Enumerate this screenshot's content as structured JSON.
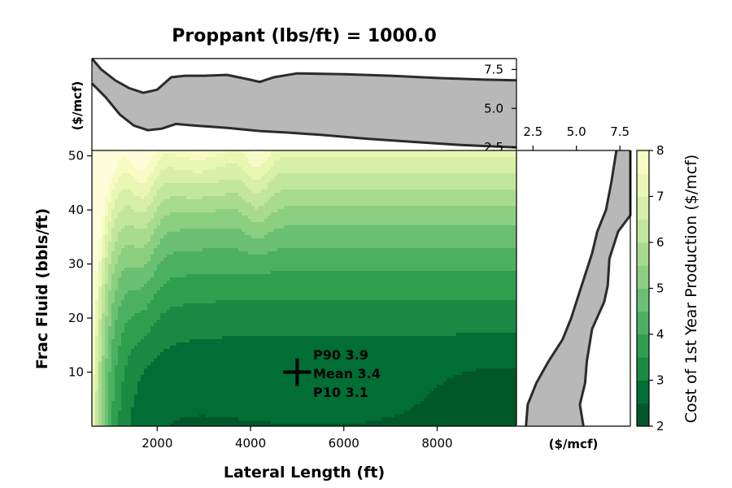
{
  "chart_data": {
    "type": "heatmap",
    "title": "Proppant (lbs/ft) = 1000.0",
    "xlabel": "Lateral Length (ft)",
    "ylabel": "Frac Fluid (bbls/ft)",
    "xlim": [
      600,
      9700
    ],
    "ylim": [
      0,
      51
    ],
    "x_ticks": [
      2000,
      4000,
      6000,
      8000
    ],
    "y_ticks": [
      10,
      20,
      30,
      40,
      50
    ],
    "colorbar": {
      "label": "Cost of 1st Year Production ($/mcf)",
      "levels": [
        2,
        2.5,
        3,
        3.5,
        4,
        4.5,
        5,
        5.5,
        6,
        6.5,
        7,
        7.5,
        8
      ],
      "ticks": [
        2,
        3,
        4,
        5,
        6,
        7,
        8
      ],
      "colors": [
        "#00572a",
        "#006e35",
        "#1a8a42",
        "#2f9e4f",
        "#4bb062",
        "#6bc074",
        "#8ccf80",
        "#a9db8f",
        "#c2e69c",
        "#d7efa6",
        "#e9f7b2",
        "#f7fcc4",
        "#fdfed9"
      ]
    },
    "marker": {
      "x": 5000,
      "y": 10
    },
    "annotation": [
      "P90 3.9",
      "Mean 3.4",
      "P10 3.1"
    ],
    "top_marginal": {
      "ylabel": "($/mcf)",
      "ylim": [
        2.3,
        8.2
      ],
      "y_ticks": [
        "2.5",
        "5.0",
        "7.5"
      ],
      "upper": [
        [
          600,
          8.3
        ],
        [
          800,
          7.5
        ],
        [
          1100,
          6.8
        ],
        [
          1400,
          6.3
        ],
        [
          1700,
          6.0
        ],
        [
          2000,
          6.2
        ],
        [
          2300,
          7.0
        ],
        [
          2600,
          7.1
        ],
        [
          3000,
          7.1
        ],
        [
          3500,
          7.15
        ],
        [
          3900,
          6.9
        ],
        [
          4200,
          6.7
        ],
        [
          4500,
          7.0
        ],
        [
          5000,
          7.25
        ],
        [
          6000,
          7.2
        ],
        [
          7000,
          7.1
        ],
        [
          8000,
          6.95
        ],
        [
          9000,
          6.85
        ],
        [
          9700,
          6.8
        ]
      ],
      "lower": [
        [
          600,
          6.6
        ],
        [
          900,
          5.7
        ],
        [
          1200,
          4.6
        ],
        [
          1500,
          3.9
        ],
        [
          1800,
          3.6
        ],
        [
          2100,
          3.7
        ],
        [
          2400,
          4.0
        ],
        [
          2800,
          3.9
        ],
        [
          3500,
          3.75
        ],
        [
          4200,
          3.55
        ],
        [
          4800,
          3.45
        ],
        [
          5500,
          3.3
        ],
        [
          6500,
          3.05
        ],
        [
          7500,
          2.85
        ],
        [
          8500,
          2.65
        ],
        [
          9700,
          2.5
        ]
      ]
    },
    "right_marginal": {
      "xlabel": "($/mcf)",
      "xlim": [
        1.6,
        8.1
      ],
      "x_ticks": [
        "2.5",
        "5.0",
        "7.5"
      ],
      "left": [
        [
          7.3,
          51
        ],
        [
          7.0,
          45
        ],
        [
          6.7,
          40
        ],
        [
          6.2,
          36
        ],
        [
          5.9,
          32
        ],
        [
          5.5,
          28
        ],
        [
          5.1,
          24
        ],
        [
          4.7,
          20
        ],
        [
          4.2,
          16
        ],
        [
          3.4,
          12
        ],
        [
          2.7,
          8
        ],
        [
          2.2,
          4
        ],
        [
          2.1,
          0
        ]
      ],
      "right": [
        [
          8.1,
          51
        ],
        [
          8.1,
          39
        ],
        [
          7.4,
          36
        ],
        [
          6.9,
          31
        ],
        [
          6.8,
          26
        ],
        [
          6.6,
          23
        ],
        [
          5.9,
          18
        ],
        [
          5.6,
          12
        ],
        [
          5.5,
          8
        ],
        [
          5.2,
          4
        ],
        [
          5.4,
          0
        ]
      ]
    }
  }
}
